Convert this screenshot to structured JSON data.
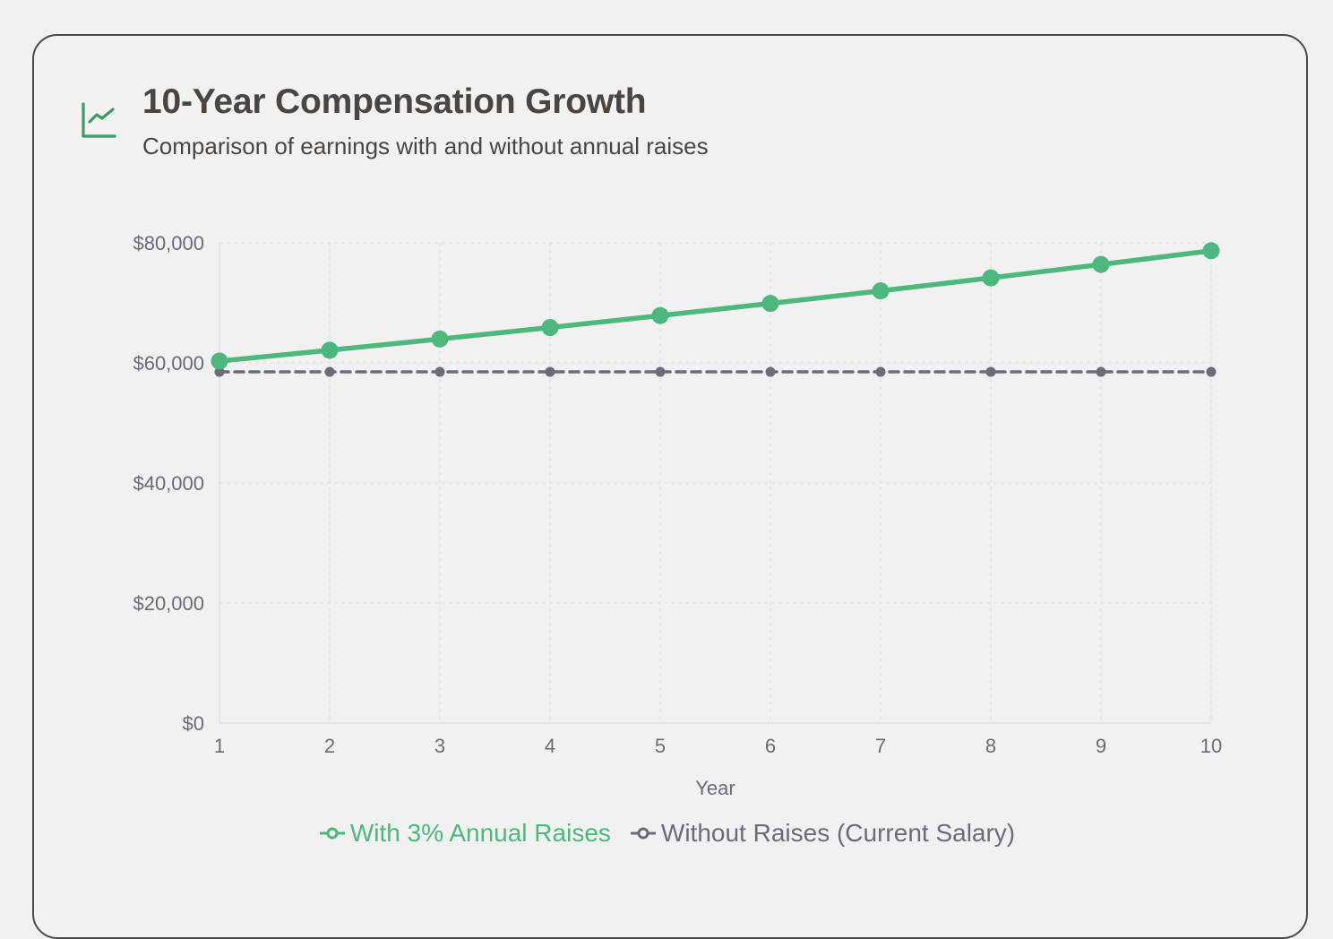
{
  "header": {
    "title": "10-Year Compensation Growth",
    "subtitle": "Comparison of earnings with and without annual raises",
    "icon": "line-chart-icon"
  },
  "colors": {
    "accent": "#4cb87d",
    "secondary": "#6b6b7b",
    "text": "#4a4541",
    "axis_text": "#6b6b78",
    "grid": "#e3e3e3",
    "icon": "#3e9a66"
  },
  "chart_data": {
    "type": "line",
    "title": "10-Year Compensation Growth",
    "xlabel": "Year",
    "ylabel": "",
    "categories": [
      "1",
      "2",
      "3",
      "4",
      "5",
      "6",
      "7",
      "8",
      "9",
      "10"
    ],
    "y_ticks": [
      "$0",
      "$20,000",
      "$40,000",
      "$60,000",
      "$80,000"
    ],
    "y_tick_values": [
      0,
      20000,
      40000,
      60000,
      80000
    ],
    "ylim": [
      0,
      80000
    ],
    "grid": true,
    "legend_position": "bottom",
    "series": [
      {
        "name": "With 3% Annual Raises",
        "color": "#4cb87d",
        "style": "solid",
        "values": [
          60300,
          62110,
          63970,
          65890,
          67870,
          69900,
          72000,
          74160,
          76390,
          78680
        ]
      },
      {
        "name": "Without Raises (Current Salary)",
        "color": "#6b6b7b",
        "style": "dashed",
        "values": [
          58500,
          58500,
          58500,
          58500,
          58500,
          58500,
          58500,
          58500,
          58500,
          58500
        ]
      }
    ]
  }
}
